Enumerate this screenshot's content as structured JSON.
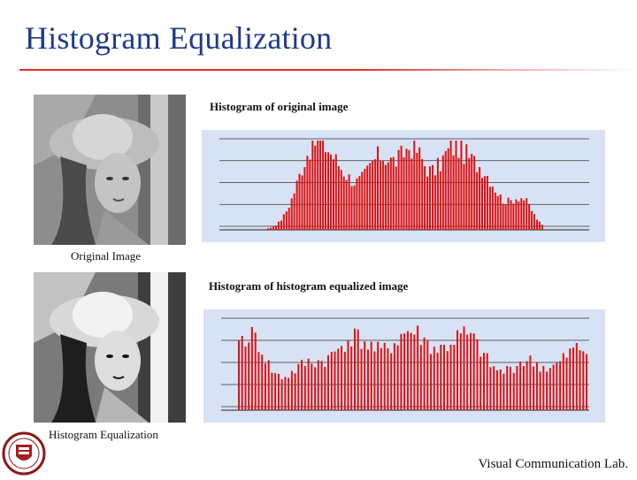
{
  "slide": {
    "title": "Histogram Equalization",
    "footer": "Visual Communication Lab."
  },
  "images": {
    "original_caption": "Original Image",
    "equalized_caption": "Histogram Equalization"
  },
  "histograms": {
    "original_title": "Histogram of original image",
    "equalized_title": "Histogram of histogram equalized image"
  },
  "colors": {
    "title": "#1f3a8a",
    "accent_rule": "#e12a2a",
    "bar": "#e01010",
    "plot_bg": "#d7e3f4"
  }
}
